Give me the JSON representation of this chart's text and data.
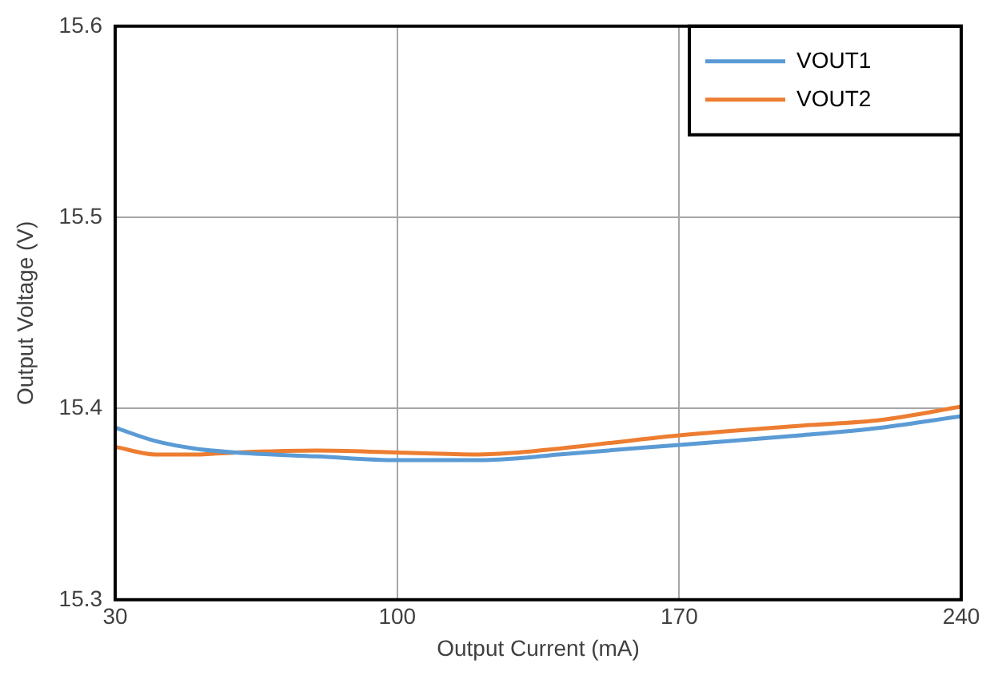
{
  "chart_data": {
    "type": "line",
    "xlabel": "Output Current (mA)",
    "ylabel": "Output Voltage (V)",
    "x": [
      30,
      40,
      50,
      60,
      80,
      100,
      120,
      130,
      140,
      170,
      200,
      220,
      240
    ],
    "series": [
      {
        "name": "VOUT1",
        "color": "#5b9bd5",
        "values": [
          15.39,
          15.383,
          15.379,
          15.377,
          15.375,
          15.373,
          15.373,
          15.374,
          15.376,
          15.381,
          15.386,
          15.39,
          15.396
        ]
      },
      {
        "name": "VOUT2",
        "color": "#ed7d31",
        "values": [
          15.38,
          15.376,
          15.376,
          15.377,
          15.378,
          15.377,
          15.376,
          15.377,
          15.379,
          15.386,
          15.391,
          15.394,
          15.401
        ]
      }
    ],
    "xlim": [
      30,
      240
    ],
    "xticks": [
      30,
      100,
      170,
      240
    ],
    "ylim": [
      15.3,
      15.6
    ],
    "yticks": [
      {
        "value": 15.3,
        "label": "15.3"
      },
      {
        "value": 15.4,
        "label": "15.4"
      },
      {
        "value": 15.5,
        "label": "15.5"
      },
      {
        "value": 15.6,
        "label": "15.6"
      }
    ],
    "grid": true,
    "legend": "top right",
    "marker": "none",
    "line_style": "solid"
  }
}
